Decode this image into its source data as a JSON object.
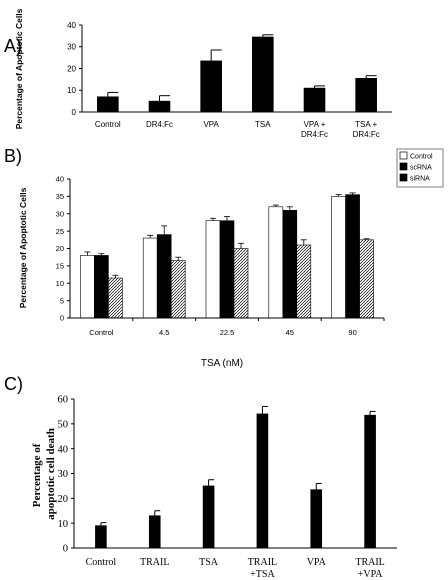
{
  "chart_data": [
    {
      "panel": "A)",
      "type": "bar",
      "ylabel": "Percentage of Apoptotic Cells",
      "ylim": [
        0,
        40
      ],
      "yticks": [
        0,
        10,
        20,
        30,
        40
      ],
      "categories": [
        [
          "Control"
        ],
        [
          "DR4:Fc"
        ],
        [
          "VPA"
        ],
        [
          "TSA"
        ],
        [
          "VPA +",
          "DR4:Fc"
        ],
        [
          "TSA +",
          "DR4:Fc"
        ]
      ],
      "series": [
        {
          "values": [
            7,
            5,
            23.5,
            34.5,
            11,
            15.5
          ],
          "errors": [
            2,
            2.5,
            5,
            1,
            1,
            1.2
          ],
          "color": "#000000"
        }
      ],
      "grid": false
    },
    {
      "panel": "B)",
      "type": "bar",
      "ylabel": "Percentage of Apoptotic Cells",
      "xlabel": "TSA (nM)",
      "ylim": [
        0,
        40
      ],
      "yticks": [
        0,
        5,
        10,
        15,
        20,
        25,
        30,
        35,
        40
      ],
      "categories": [
        "Control",
        "4.5",
        "22.5",
        "45",
        "90"
      ],
      "legend_position": "top-right",
      "series": [
        {
          "name": "Control",
          "fill": "white",
          "values": [
            18,
            23,
            28,
            32,
            35
          ],
          "errors": [
            1,
            0.8,
            0.7,
            0.5,
            0.5
          ]
        },
        {
          "name": "scRNA",
          "fill": "black",
          "values": [
            18,
            24,
            28,
            31,
            35.5
          ],
          "errors": [
            0.5,
            2.5,
            1.2,
            1,
            0.5
          ]
        },
        {
          "name": "siRNA",
          "fill": "hatched",
          "values": [
            11.5,
            16.5,
            20,
            21,
            22.5
          ],
          "errors": [
            0.8,
            1,
            1.5,
            1.5,
            0.3
          ]
        }
      ],
      "grid": false
    },
    {
      "panel": "C)",
      "type": "bar",
      "ylabel_lines": [
        "Percentage of",
        "apoptotic cell death"
      ],
      "ylim": [
        0,
        60
      ],
      "yticks": [
        0,
        10,
        20,
        30,
        40,
        50,
        60
      ],
      "categories": [
        [
          "Control"
        ],
        [
          "TRAIL"
        ],
        [
          "TSA"
        ],
        [
          "TRAIL",
          "+TSA"
        ],
        [
          "VPA"
        ],
        [
          "TRAIL",
          "+VPA"
        ]
      ],
      "series": [
        {
          "values": [
            9,
            13,
            25,
            54,
            23.5,
            53.5
          ],
          "errors": [
            1.2,
            2,
            2.5,
            3,
            2.5,
            1.5
          ],
          "color": "#000000"
        }
      ],
      "grid": false
    }
  ]
}
